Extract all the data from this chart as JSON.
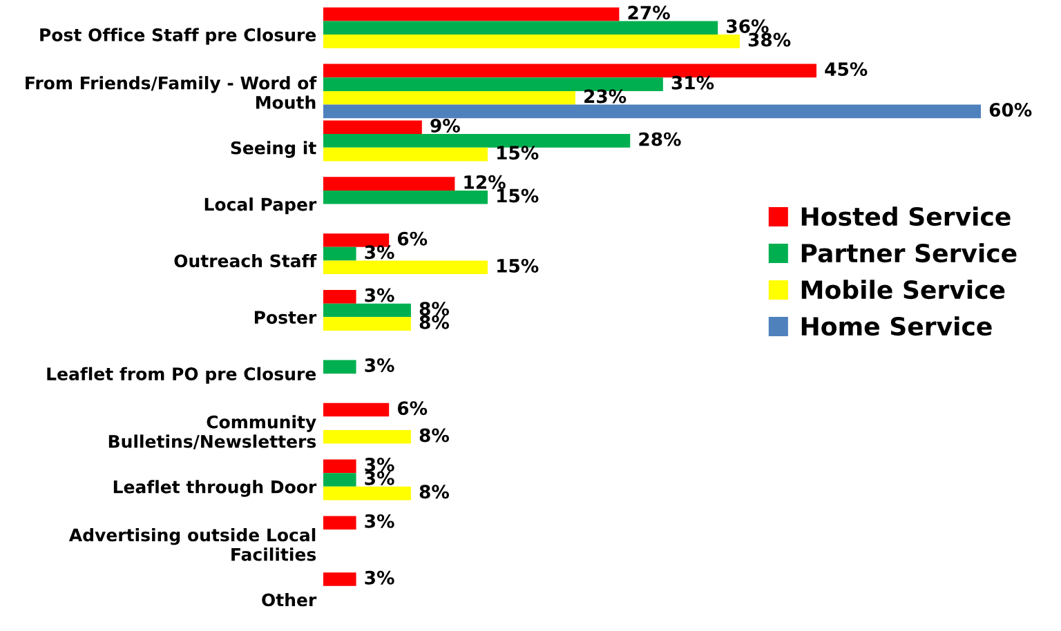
{
  "chart_data": {
    "type": "bar",
    "orientation": "horizontal",
    "categories": [
      "Post Office Staff pre Closure",
      "From Friends/Family - Word of Mouth",
      "Seeing it",
      "Local Paper",
      "Outreach Staff",
      "Poster",
      "Leaflet from PO pre Closure",
      "Community Bulletins/Newsletters",
      "Leaflet through Door",
      "Advertising outside Local Facilities",
      "Other"
    ],
    "series": [
      {
        "name": "Hosted Service",
        "color": "#ff0000",
        "values": [
          27,
          45,
          9,
          12,
          6,
          3,
          null,
          6,
          3,
          3,
          3
        ],
        "value_labels": [
          "27%",
          "45%",
          "9%",
          "12%",
          "6%",
          "3%",
          null,
          "6%",
          "3%",
          "3%",
          "3%"
        ]
      },
      {
        "name": "Partner Service",
        "color": "#00b050",
        "values": [
          36,
          31,
          28,
          15,
          3,
          8,
          3,
          null,
          3,
          null,
          null
        ],
        "value_labels": [
          "36%",
          "31%",
          "28%",
          "15%",
          "3%",
          "8%",
          "3%",
          null,
          "3%",
          null,
          null
        ]
      },
      {
        "name": "Mobile Service",
        "color": "#ffff00",
        "values": [
          38,
          23,
          15,
          null,
          15,
          8,
          null,
          8,
          8,
          null,
          null
        ],
        "value_labels": [
          "38%",
          "23%",
          "15%",
          null,
          "15%",
          "8%",
          null,
          "8%",
          "8%",
          null,
          null
        ]
      },
      {
        "name": "Home Service",
        "color": "#4f81bd",
        "values": [
          null,
          60,
          null,
          null,
          null,
          null,
          null,
          null,
          null,
          null,
          null
        ],
        "value_labels": [
          null,
          "60%",
          null,
          null,
          null,
          null,
          null,
          null,
          null,
          null,
          null
        ]
      }
    ],
    "xlim": [
      0,
      60
    ],
    "tick_labels": "y",
    "grid": false,
    "legend": "right"
  }
}
